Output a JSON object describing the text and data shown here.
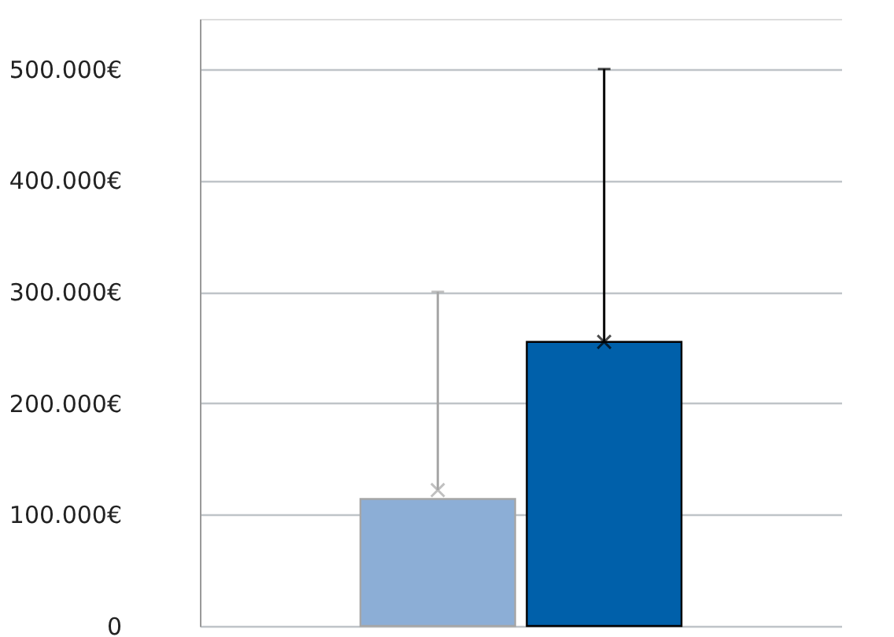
{
  "chart_data": {
    "type": "bar",
    "categories": [
      null
    ],
    "series": [
      {
        "color": "#8caed6",
        "values": [
          114000
        ]
      },
      {
        "color": "#0060aa",
        "values": [
          255000
        ]
      },
      {
        "type": "scatter",
        "color": "#a6a6a6",
        "values": [
          122000
        ],
        "errors": [
          [
            122000,
            300000
          ]
        ]
      },
      {
        "type": "scatter",
        "color": "#000000",
        "values": [
          255000
        ],
        "errors": [
          [
            255000,
            500000
          ]
        ]
      }
    ],
    "ylim": [
      0,
      545000
    ],
    "yticks": [
      0,
      {
        "value": 100000,
        "label": "100.000€"
      },
      {
        "value": 200000,
        "label": "200.000€"
      },
      {
        "value": 300000,
        "label": "300.000€"
      },
      {
        "value": 400000,
        "label": "400.000€"
      },
      {
        "value": 500000,
        "label": "500.000€"
      }
    ],
    "grid": "y",
    "legend": false,
    "tick_labels": "y",
    "marker": "cross"
  }
}
